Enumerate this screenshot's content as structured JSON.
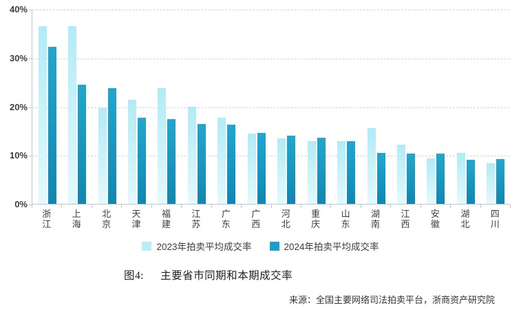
{
  "chart_data": {
    "type": "bar",
    "title": "",
    "categories": [
      "浙江",
      "上海",
      "北京",
      "天津",
      "福建",
      "江苏",
      "广东",
      "广西",
      "河北",
      "重庆",
      "山东",
      "湖南",
      "江西",
      "安徽",
      "湖北",
      "四川"
    ],
    "series": [
      {
        "name": "2023年拍卖平均成交率",
        "color": "#b9eef8",
        "values": [
          36.4,
          36.4,
          19.6,
          21.4,
          23.7,
          19.9,
          17.7,
          14.4,
          13.5,
          12.9,
          12.9,
          15.6,
          12.2,
          9.4,
          10.5,
          8.3
        ]
      },
      {
        "name": "2024年拍卖平均成交率",
        "color": "#1c9fc8",
        "values": [
          32.2,
          24.5,
          23.7,
          17.7,
          17.4,
          16.4,
          16.3,
          14.5,
          14.0,
          13.6,
          12.8,
          10.5,
          10.3,
          10.3,
          9.1,
          9.2
        ]
      }
    ],
    "ylim": [
      0,
      40
    ],
    "yticks": [
      {
        "label": "0%",
        "value": 0
      },
      {
        "label": "10%",
        "value": 10
      },
      {
        "label": "20%",
        "value": 20
      },
      {
        "label": "30%",
        "value": 30
      },
      {
        "label": "40%",
        "value": 40
      }
    ],
    "grid": "horizontal-dashed",
    "legend_position": "bottom-center",
    "axis_color": "#b6c9d3",
    "grid_color": "#d4d4d4"
  },
  "caption": {
    "label": "图4:",
    "title": "主要省市同期和本期成交率"
  },
  "source": "来源：全国主要网络司法拍卖平台，浙商资产研究院"
}
